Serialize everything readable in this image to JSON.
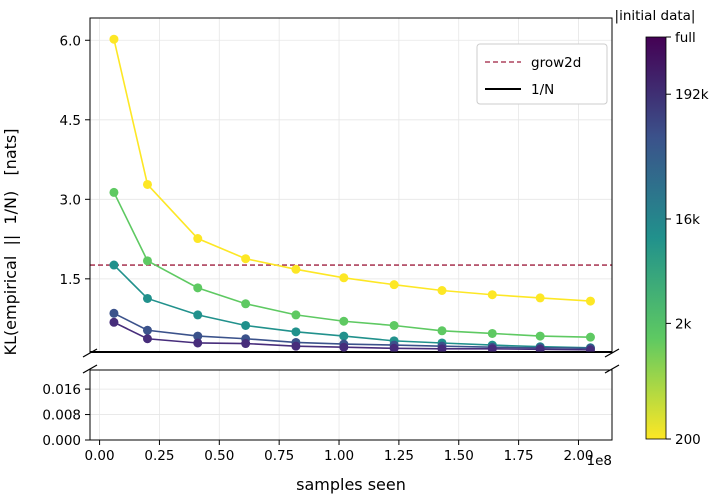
{
  "chart_data": {
    "type": "line",
    "xlabel": "samples seen",
    "x_offset_label": "1e8",
    "ylabel": "KL(empirical  ||  1/N)   [nats]",
    "colorbar_label": "|initial data|",
    "colorbar_ticks": [
      "200",
      "2k",
      "16k",
      "192k",
      "full"
    ],
    "x": [
      0.06,
      0.2,
      0.41,
      0.61,
      0.82,
      1.02,
      1.23,
      1.43,
      1.64,
      1.84,
      2.05
    ],
    "x_ticks": [
      "0.00",
      "0.25",
      "0.50",
      "0.75",
      "1.00",
      "1.25",
      "1.50",
      "1.75",
      "2.00"
    ],
    "y_ticks_upper": [
      "1.5",
      "3.0",
      "4.5",
      "6.0"
    ],
    "y_ticks_lower": [
      "0.000",
      "0.008",
      "0.016"
    ],
    "grid": true,
    "legend_position": "top-right",
    "legend": [
      {
        "label": "grow2d",
        "style": "dashed",
        "color": "#9e1f3f"
      },
      {
        "label": "1/N",
        "style": "solid",
        "color": "#000000"
      }
    ],
    "reference_lines": {
      "grow2d": 1.76,
      "uniform": 0.0
    },
    "series": [
      {
        "color": "#fde725",
        "values": [
          6.02,
          3.28,
          2.26,
          1.88,
          1.68,
          1.52,
          1.39,
          1.28,
          1.2,
          1.14,
          1.08
        ]
      },
      {
        "color": "#5ec962",
        "values": [
          3.13,
          1.84,
          1.33,
          1.03,
          0.82,
          0.7,
          0.62,
          0.52,
          0.47,
          0.42,
          0.4
        ]
      },
      {
        "color": "#21918c",
        "values": [
          1.76,
          1.13,
          0.82,
          0.62,
          0.5,
          0.42,
          0.33,
          0.29,
          0.25,
          0.22,
          0.2
        ]
      },
      {
        "color": "#3b528b",
        "values": [
          0.85,
          0.53,
          0.42,
          0.37,
          0.3,
          0.27,
          0.25,
          0.23,
          0.21,
          0.2,
          0.19
        ]
      },
      {
        "color": "#472d7b",
        "values": [
          0.68,
          0.37,
          0.29,
          0.28,
          0.23,
          0.21,
          0.19,
          0.18,
          0.18,
          0.17,
          0.16
        ]
      }
    ]
  }
}
